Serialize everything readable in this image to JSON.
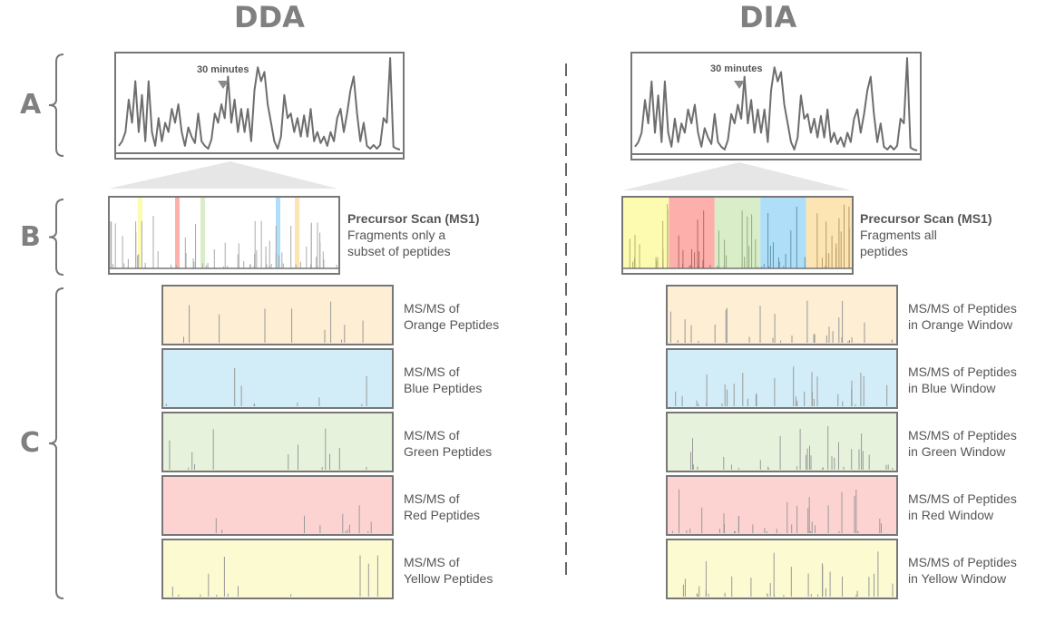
{
  "titles": {
    "left": "DDA",
    "right": "DIA"
  },
  "row_labels": [
    "A",
    "B",
    "C"
  ],
  "chromatogram": {
    "marker_label": "30 minutes"
  },
  "dda": {
    "ms1_title": "Precursor Scan (MS1)",
    "ms1_desc_line1": "Fragments only a",
    "ms1_desc_line2": "subset of peptides",
    "msms": [
      {
        "line1": "MS/MS of",
        "line2": "Orange Peptides",
        "color": "#fdeed4"
      },
      {
        "line1": "MS/MS of",
        "line2": "Blue Peptides",
        "color": "#d3edf8"
      },
      {
        "line1": "MS/MS of",
        "line2": "Green Peptides",
        "color": "#e6f2dc"
      },
      {
        "line1": "MS/MS of",
        "line2": "Red Peptides",
        "color": "#fdd3d1"
      },
      {
        "line1": "MS/MS of",
        "line2": "Yellow Peptides",
        "color": "#fcfad0"
      }
    ]
  },
  "dia": {
    "ms1_title": "Precursor Scan (MS1)",
    "ms1_desc_line1": "Fragments all",
    "ms1_desc_line2": "peptides",
    "msms": [
      {
        "line1": "MS/MS of Peptides",
        "line2": "in Orange Window",
        "color": "#fdeed4"
      },
      {
        "line1": "MS/MS of Peptides",
        "line2": "in Blue Window",
        "color": "#d3edf8"
      },
      {
        "line1": "MS/MS of Peptides",
        "line2": "in Green Window",
        "color": "#e6f2dc"
      },
      {
        "line1": "MS/MS of Peptides",
        "line2": "in Red Window",
        "color": "#fdd3d1"
      },
      {
        "line1": "MS/MS of Peptides",
        "line2": "in Yellow Window",
        "color": "#fcfad0"
      }
    ]
  },
  "window_colors": [
    "#fdfbb0",
    "#fdafab",
    "#d9eec8",
    "#afdff8",
    "#fde5b3"
  ]
}
